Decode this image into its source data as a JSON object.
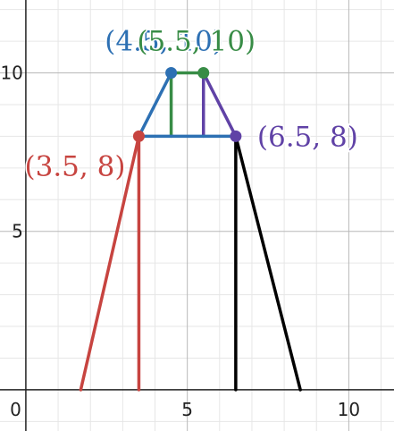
{
  "chart_data": {
    "type": "scatter",
    "xlim": [
      -0.8,
      11.4
    ],
    "ylim": [
      -1.3,
      12.3
    ],
    "grid": true,
    "major_step": 5,
    "minor_step": 1,
    "x_ticks": [
      {
        "value": 0,
        "label": "0"
      },
      {
        "value": 5,
        "label": "5"
      },
      {
        "value": 10,
        "label": "10"
      }
    ],
    "y_ticks": [
      {
        "value": 5,
        "label": "5"
      },
      {
        "value": 10,
        "label": "10"
      }
    ],
    "segments": [
      {
        "color": "#c74440",
        "points": [
          [
            1.7,
            0
          ],
          [
            3.5,
            8
          ]
        ]
      },
      {
        "color": "#c74440",
        "points": [
          [
            3.5,
            8
          ],
          [
            3.5,
            0
          ]
        ]
      },
      {
        "color": "#2d70b3",
        "points": [
          [
            3.5,
            8
          ],
          [
            4.5,
            10
          ]
        ]
      },
      {
        "color": "#388c46",
        "points": [
          [
            4.5,
            10
          ],
          [
            5.5,
            10
          ]
        ]
      },
      {
        "color": "#388c46",
        "points": [
          [
            4.5,
            10
          ],
          [
            4.5,
            8
          ]
        ]
      },
      {
        "color": "#6042a6",
        "points": [
          [
            5.5,
            10
          ],
          [
            6.5,
            8
          ]
        ]
      },
      {
        "color": "#6042a6",
        "points": [
          [
            5.5,
            10
          ],
          [
            5.5,
            8
          ]
        ]
      },
      {
        "color": "#2d70b3",
        "points": [
          [
            3.5,
            8
          ],
          [
            6.5,
            8
          ]
        ]
      },
      {
        "color": "#000000",
        "points": [
          [
            6.5,
            8
          ],
          [
            8.5,
            0
          ]
        ]
      },
      {
        "color": "#000000",
        "points": [
          [
            6.5,
            8
          ],
          [
            6.5,
            0
          ]
        ]
      }
    ],
    "points": [
      {
        "x": 3.5,
        "y": 8,
        "label": "(3.5, 8)",
        "color": "#c74440",
        "label_anchor": "end"
      },
      {
        "x": 4.5,
        "y": 10,
        "label": "(4.5, 10)",
        "color": "#2d70b3",
        "label_anchor": "middle"
      },
      {
        "x": 5.5,
        "y": 10,
        "label": "(5.5, 10)",
        "color": "#388c46",
        "label_anchor": "middle"
      },
      {
        "x": 6.5,
        "y": 8,
        "label": "(6.5, 8)",
        "color": "#6042a6",
        "label_anchor": "start"
      }
    ]
  }
}
